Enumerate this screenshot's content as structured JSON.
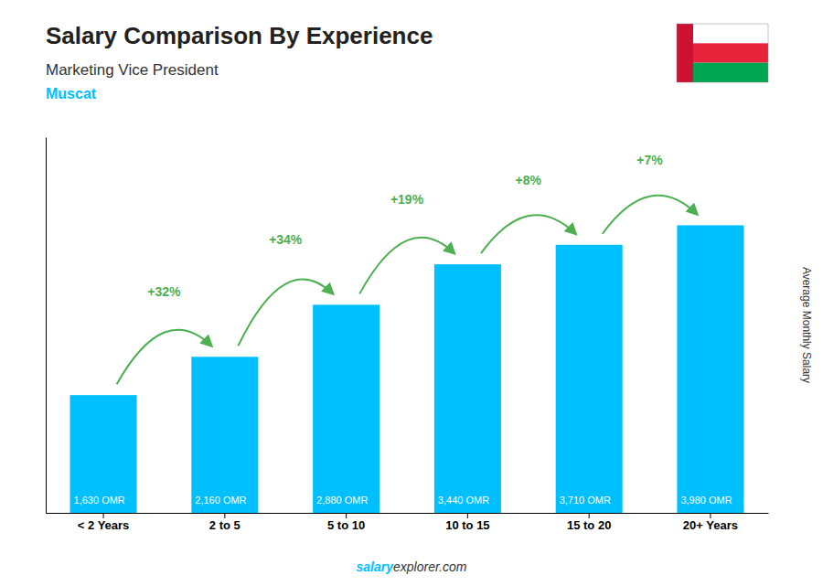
{
  "chart_data": {
    "type": "bar",
    "title": "Salary Comparison By Experience",
    "subtitle": [
      "Marketing Vice President",
      "Muscat"
    ],
    "ylabel": "Average Monthly Salary",
    "categories": [
      "< 2 Years",
      "2 to 5",
      "5 to 10",
      "10 to 15",
      "15 to 20",
      "20+ Years"
    ],
    "values": [
      1630,
      2160,
      2880,
      3440,
      3710,
      3980
    ],
    "value_labels": [
      "1,630 OMR",
      "2,160 OMR",
      "2,880 OMR",
      "3,440 OMR",
      "3,710 OMR",
      "3,980 OMR"
    ],
    "data_labels": true,
    "annotations": [
      "+32%",
      "+34%",
      "+19%",
      "+8%",
      "+7%"
    ],
    "source": [
      "salary",
      "explorer.com"
    ],
    "color": "#00BFFF",
    "ylim": [
      0,
      5200
    ],
    "tick_labels": "x",
    "grid": false
  }
}
